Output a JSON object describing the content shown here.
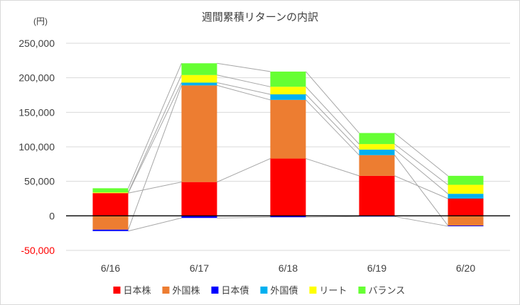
{
  "chart_data": {
    "type": "bar",
    "stacked": true,
    "title": "週間累積リターンの内訳",
    "unit_label": "(円)",
    "categories": [
      "6/16",
      "6/17",
      "6/18",
      "6/19",
      "6/20"
    ],
    "ylim": [
      -50000,
      250000
    ],
    "yticks": [
      -50000,
      0,
      50000,
      100000,
      150000,
      200000,
      250000
    ],
    "ytick_labels": [
      "-50,000",
      "0",
      "50,000",
      "100,000",
      "150,000",
      "200,000",
      "250,000"
    ],
    "grid": true,
    "series_lines": true,
    "legend_position": "bottom",
    "series": [
      {
        "name": "日本株",
        "color": "#ff0000",
        "values": [
          33000,
          49000,
          83000,
          58000,
          25000
        ]
      },
      {
        "name": "外国株",
        "color": "#ed7d31",
        "values": [
          -20000,
          140000,
          85000,
          30000,
          -14000
        ]
      },
      {
        "name": "日本債",
        "color": "#0000ff",
        "values": [
          -2000,
          -3000,
          -2000,
          -1000,
          -1000
        ]
      },
      {
        "name": "外国債",
        "color": "#00b0f0",
        "values": [
          0,
          4000,
          8000,
          8000,
          7000
        ]
      },
      {
        "name": "リート",
        "color": "#ffff00",
        "values": [
          1000,
          11000,
          11000,
          8000,
          13000
        ]
      },
      {
        "name": "バランス",
        "color": "#66ff33",
        "values": [
          6000,
          17000,
          22000,
          16000,
          13000
        ]
      }
    ]
  }
}
